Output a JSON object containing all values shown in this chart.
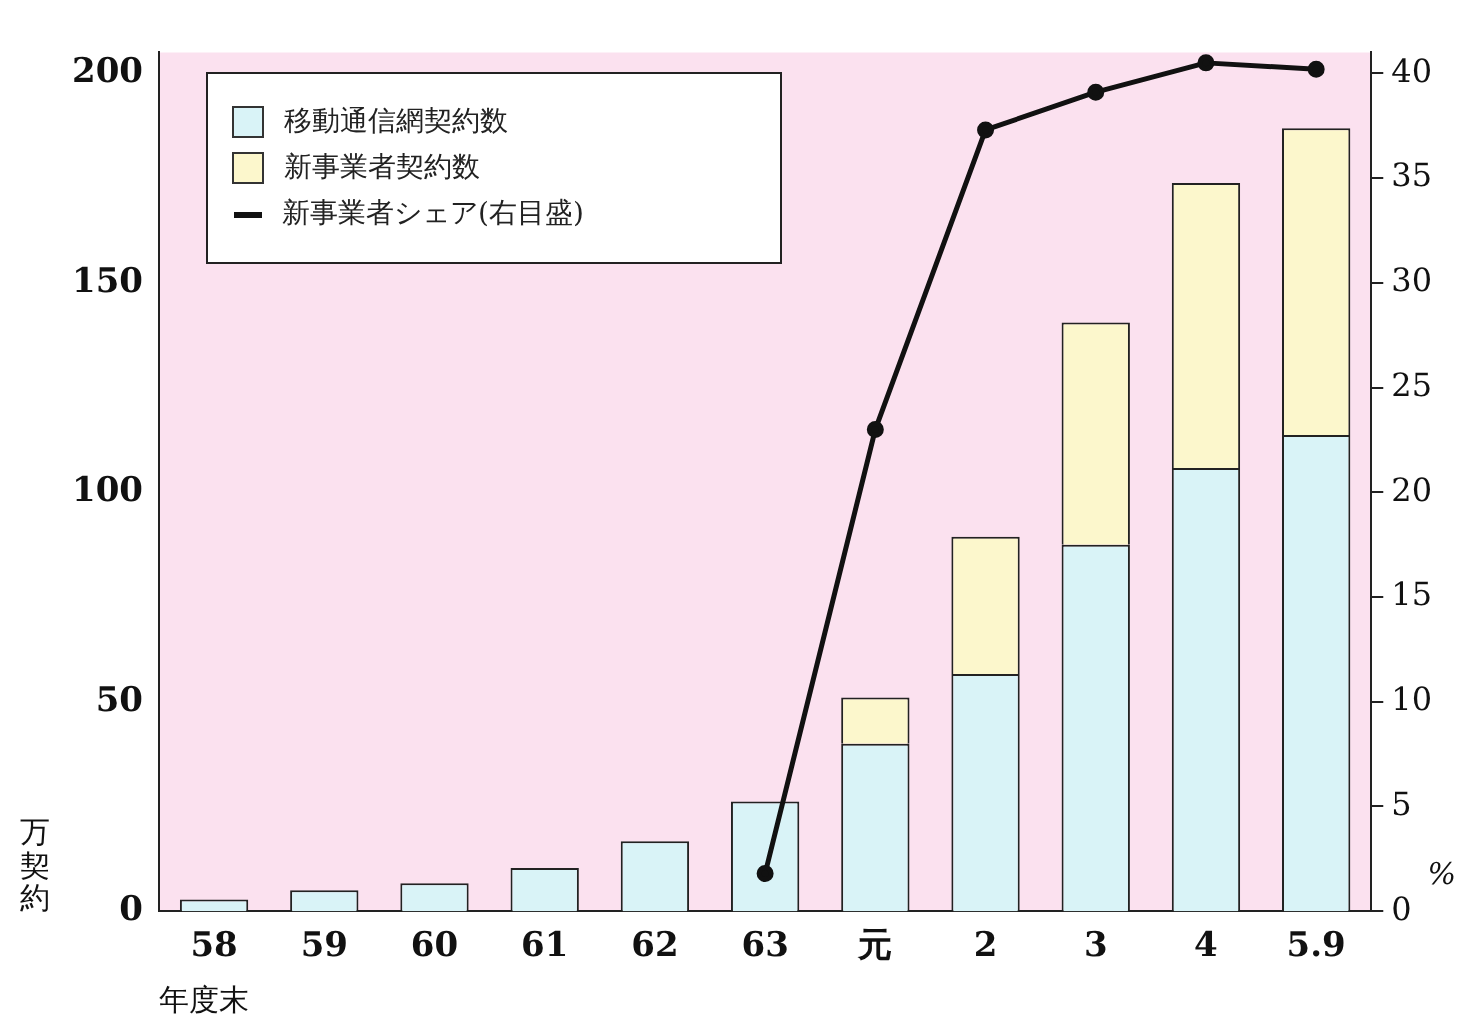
{
  "chart_data": {
    "type": "bar",
    "stacked": true,
    "categories": [
      "58",
      "59",
      "60",
      "61",
      "62",
      "63",
      "元",
      "2",
      "3",
      "4",
      "5.9"
    ],
    "series": [
      {
        "name": "移動通信網契約数",
        "color": "#d9f3f7",
        "values": [
          2.8,
          5.0,
          6.7,
          10.3,
          16.7,
          26.2,
          40.0,
          56.6,
          87.5,
          105.8,
          113.7
        ]
      },
      {
        "name": "新事業者契約数",
        "color": "#fcf7cc",
        "values": [
          null,
          null,
          null,
          null,
          null,
          null,
          11.0,
          32.8,
          53.0,
          68.0,
          73.2
        ]
      },
      {
        "name": "新事業者シェア(右目盛)",
        "type": "line",
        "axis": "y2",
        "color": "#111111",
        "marker": "circle",
        "values": [
          null,
          null,
          null,
          null,
          null,
          1.8,
          23.0,
          37.3,
          39.1,
          40.5,
          40.2
        ]
      }
    ],
    "xlabel": "年度末",
    "ylabel": "万契約",
    "y2label": "%",
    "ylim": [
      0,
      205
    ],
    "yticks": [
      0,
      50,
      100,
      150,
      200
    ],
    "y2lim": [
      0,
      41
    ],
    "y2ticks": [
      0,
      5,
      10,
      15,
      20,
      25,
      30,
      35,
      40
    ],
    "grid": false,
    "legend": "top left"
  }
}
